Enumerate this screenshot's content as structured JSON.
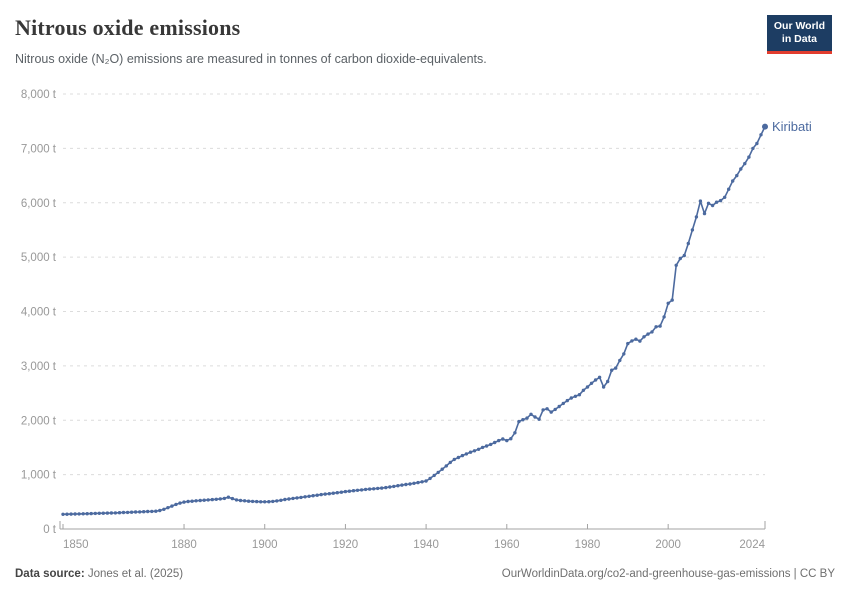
{
  "header": {
    "title": "Nitrous oxide emissions",
    "subtitle": "Nitrous oxide (N₂O) emissions are measured in tonnes of carbon dioxide-equivalents.",
    "logo": {
      "line1": "Our World",
      "line2": "in Data"
    }
  },
  "colors": {
    "line": "#4C6A9F",
    "end_label": "#4C6A9F",
    "axis_text": "#989898",
    "grid": "#dcdcdc",
    "axis_line": "#a3a3a3",
    "logo_bg": "#1d3d63",
    "logo_bar": "#e23d2e"
  },
  "chart_data": {
    "type": "line",
    "title": "Nitrous oxide emissions",
    "xlabel": "",
    "ylabel": "",
    "unit": "t",
    "ylim": [
      0,
      8000
    ],
    "yticks": [
      0,
      1000,
      2000,
      3000,
      4000,
      5000,
      6000,
      7000,
      8000
    ],
    "ytick_labels": [
      "0 t",
      "1,000 t",
      "2,000 t",
      "3,000 t",
      "4,000 t",
      "5,000 t",
      "6,000 t",
      "7,000 t",
      "8,000 t"
    ],
    "xticks": [
      1850,
      1880,
      1900,
      1920,
      1940,
      1960,
      1980,
      2000,
      2024
    ],
    "grid": "horizontal-dashed",
    "legend_position": "line-end-label",
    "end_label": "Kiribati",
    "series": [
      {
        "name": "Kiribati",
        "x_start": 1850,
        "x_end": 2024,
        "x_step": 1,
        "values": [
          270,
          272,
          274,
          276,
          278,
          280,
          282,
          284,
          286,
          288,
          290,
          292,
          294,
          297,
          300,
          303,
          306,
          309,
          312,
          315,
          318,
          321,
          324,
          328,
          340,
          362,
          392,
          422,
          452,
          476,
          495,
          505,
          512,
          518,
          524,
          530,
          535,
          540,
          546,
          553,
          563,
          585,
          560,
          536,
          525,
          518,
          512,
          507,
          503,
          501,
          500,
          502,
          507,
          516,
          528,
          542,
          552,
          562,
          572,
          582,
          592,
          602,
          612,
          622,
          632,
          642,
          650,
          658,
          667,
          677,
          688,
          696,
          704,
          712,
          720,
          728,
          734,
          740,
          746,
          753,
          762,
          772,
          784,
          796,
          808,
          818,
          828,
          840,
          854,
          868,
          882,
          930,
          985,
          1040,
          1100,
          1160,
          1225,
          1280,
          1315,
          1350,
          1382,
          1412,
          1438,
          1465,
          1500,
          1527,
          1556,
          1590,
          1625,
          1655,
          1625,
          1660,
          1770,
          1975,
          2010,
          2040,
          2110,
          2060,
          2020,
          2190,
          2210,
          2150,
          2200,
          2252,
          2310,
          2362,
          2410,
          2440,
          2470,
          2550,
          2612,
          2680,
          2740,
          2790,
          2612,
          2712,
          2920,
          2960,
          3100,
          3220,
          3410,
          3460,
          3490,
          3455,
          3535,
          3585,
          3625,
          3718,
          3732,
          3900,
          4150,
          4210,
          4850,
          4975,
          5030,
          5250,
          5500,
          5740,
          6030,
          5800,
          5990,
          5950,
          6010,
          6040,
          6100,
          6250,
          6400,
          6500,
          6620,
          6720,
          6840,
          7000,
          7090,
          7250,
          7400
        ]
      }
    ]
  },
  "footer": {
    "source_label": "Data source:",
    "source_value": "Jones et al. (2025)",
    "license": "OurWorldinData.org/co2-and-greenhouse-gas-emissions | CC BY"
  }
}
